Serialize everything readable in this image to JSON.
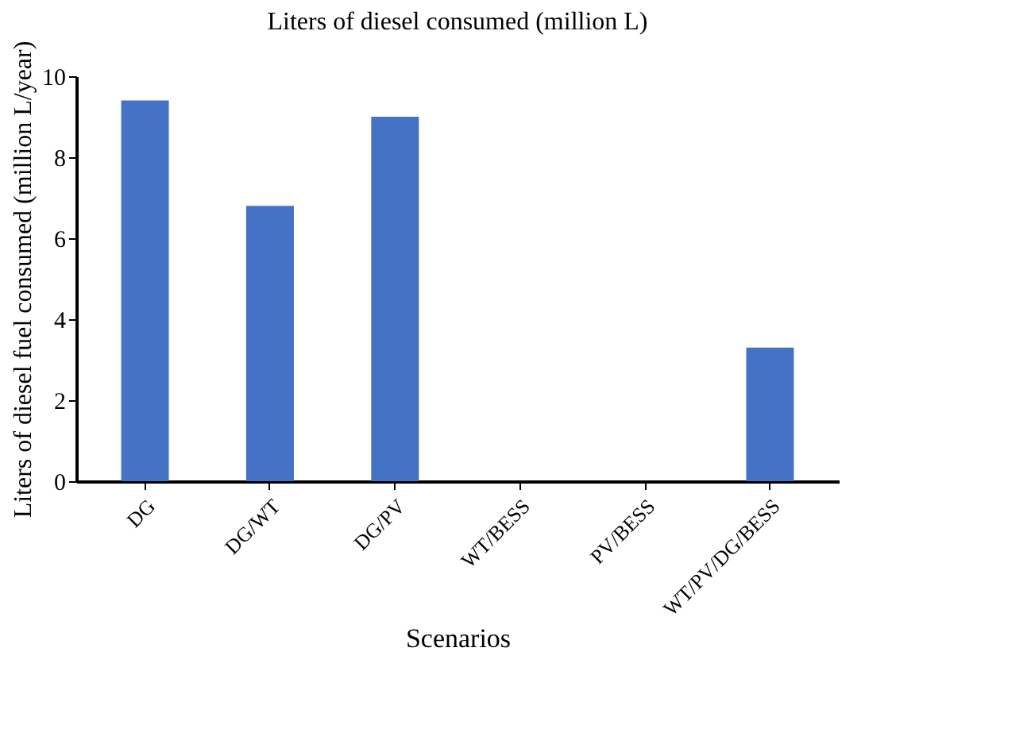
{
  "chart_data": {
    "type": "bar",
    "title": "Liters of diesel consumed (million L)",
    "xlabel": "Scenarios",
    "ylabel": "Liters of diesel fuel consumed (million L/year)",
    "categories": [
      "DG",
      "DG/WT",
      "DG/PV",
      "WT/BESS",
      "PV/BESS",
      "WT/PV/DG/BESS"
    ],
    "values": [
      9.4,
      6.8,
      9.0,
      0,
      0,
      3.3
    ],
    "color": "#4472c4",
    "ylim": [
      0,
      10
    ],
    "yticks": [
      0,
      2,
      4,
      6,
      8,
      10
    ],
    "grid": false
  }
}
